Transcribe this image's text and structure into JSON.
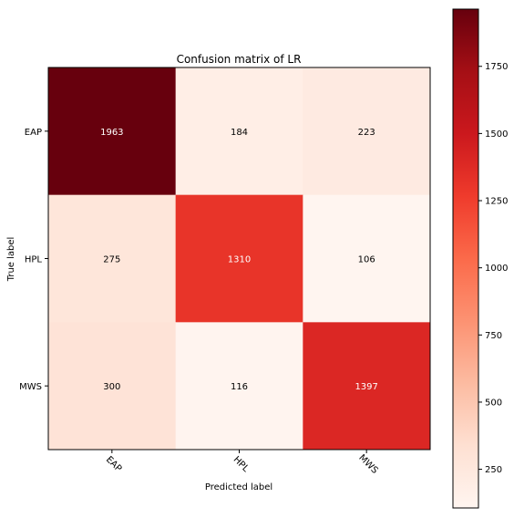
{
  "chart_data": {
    "type": "heatmap",
    "title": "Confusion matrix of LR",
    "xlabel": "Predicted label",
    "ylabel": "True label",
    "x_categories": [
      "EAP",
      "HPL",
      "MWS"
    ],
    "y_categories": [
      "EAP",
      "HPL",
      "MWS"
    ],
    "values": [
      [
        1963,
        184,
        223
      ],
      [
        275,
        1310,
        106
      ],
      [
        300,
        116,
        1397
      ]
    ],
    "colormap": "Reds",
    "value_range": [
      106,
      1963
    ],
    "colorbar_ticks": [
      250,
      500,
      750,
      1000,
      1250,
      1500,
      1750
    ],
    "grid": false
  }
}
